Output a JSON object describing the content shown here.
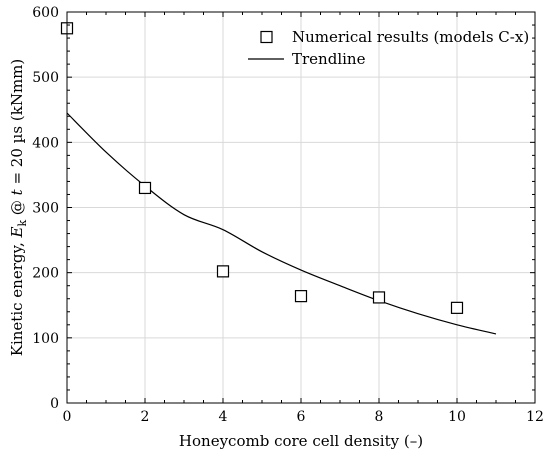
{
  "chart_data": {
    "type": "scatter",
    "xlabel": "Honeycomb core cell density (–)",
    "ylabel": {
      "prefix": "Kinetic energy, ",
      "sym": "E",
      "sub": "k",
      "mid": " @ ",
      "tsym": "t",
      "suffix": " = 20 µs (kNmm)"
    },
    "xlim": [
      0,
      12
    ],
    "ylim": [
      0,
      600
    ],
    "xticks": [
      0,
      2,
      4,
      6,
      8,
      10,
      12
    ],
    "yticks": [
      0,
      100,
      200,
      300,
      400,
      500,
      600
    ],
    "grid": true,
    "legend_position": "top-right",
    "series": [
      {
        "name": "Numerical results (models C-x)",
        "kind": "markers",
        "marker": "open-square",
        "color": "#000000",
        "x": [
          0,
          2,
          4,
          6,
          8,
          10
        ],
        "y": [
          575,
          330,
          202,
          164,
          162,
          146
        ]
      },
      {
        "name": "Trendline",
        "kind": "line",
        "color": "#000000",
        "x": [
          0,
          1,
          2,
          3,
          4,
          5,
          6,
          7,
          8,
          9,
          10,
          11
        ],
        "y": [
          445,
          385,
          333,
          289,
          266,
          232,
          204,
          180,
          157,
          137,
          120,
          106
        ]
      }
    ]
  }
}
